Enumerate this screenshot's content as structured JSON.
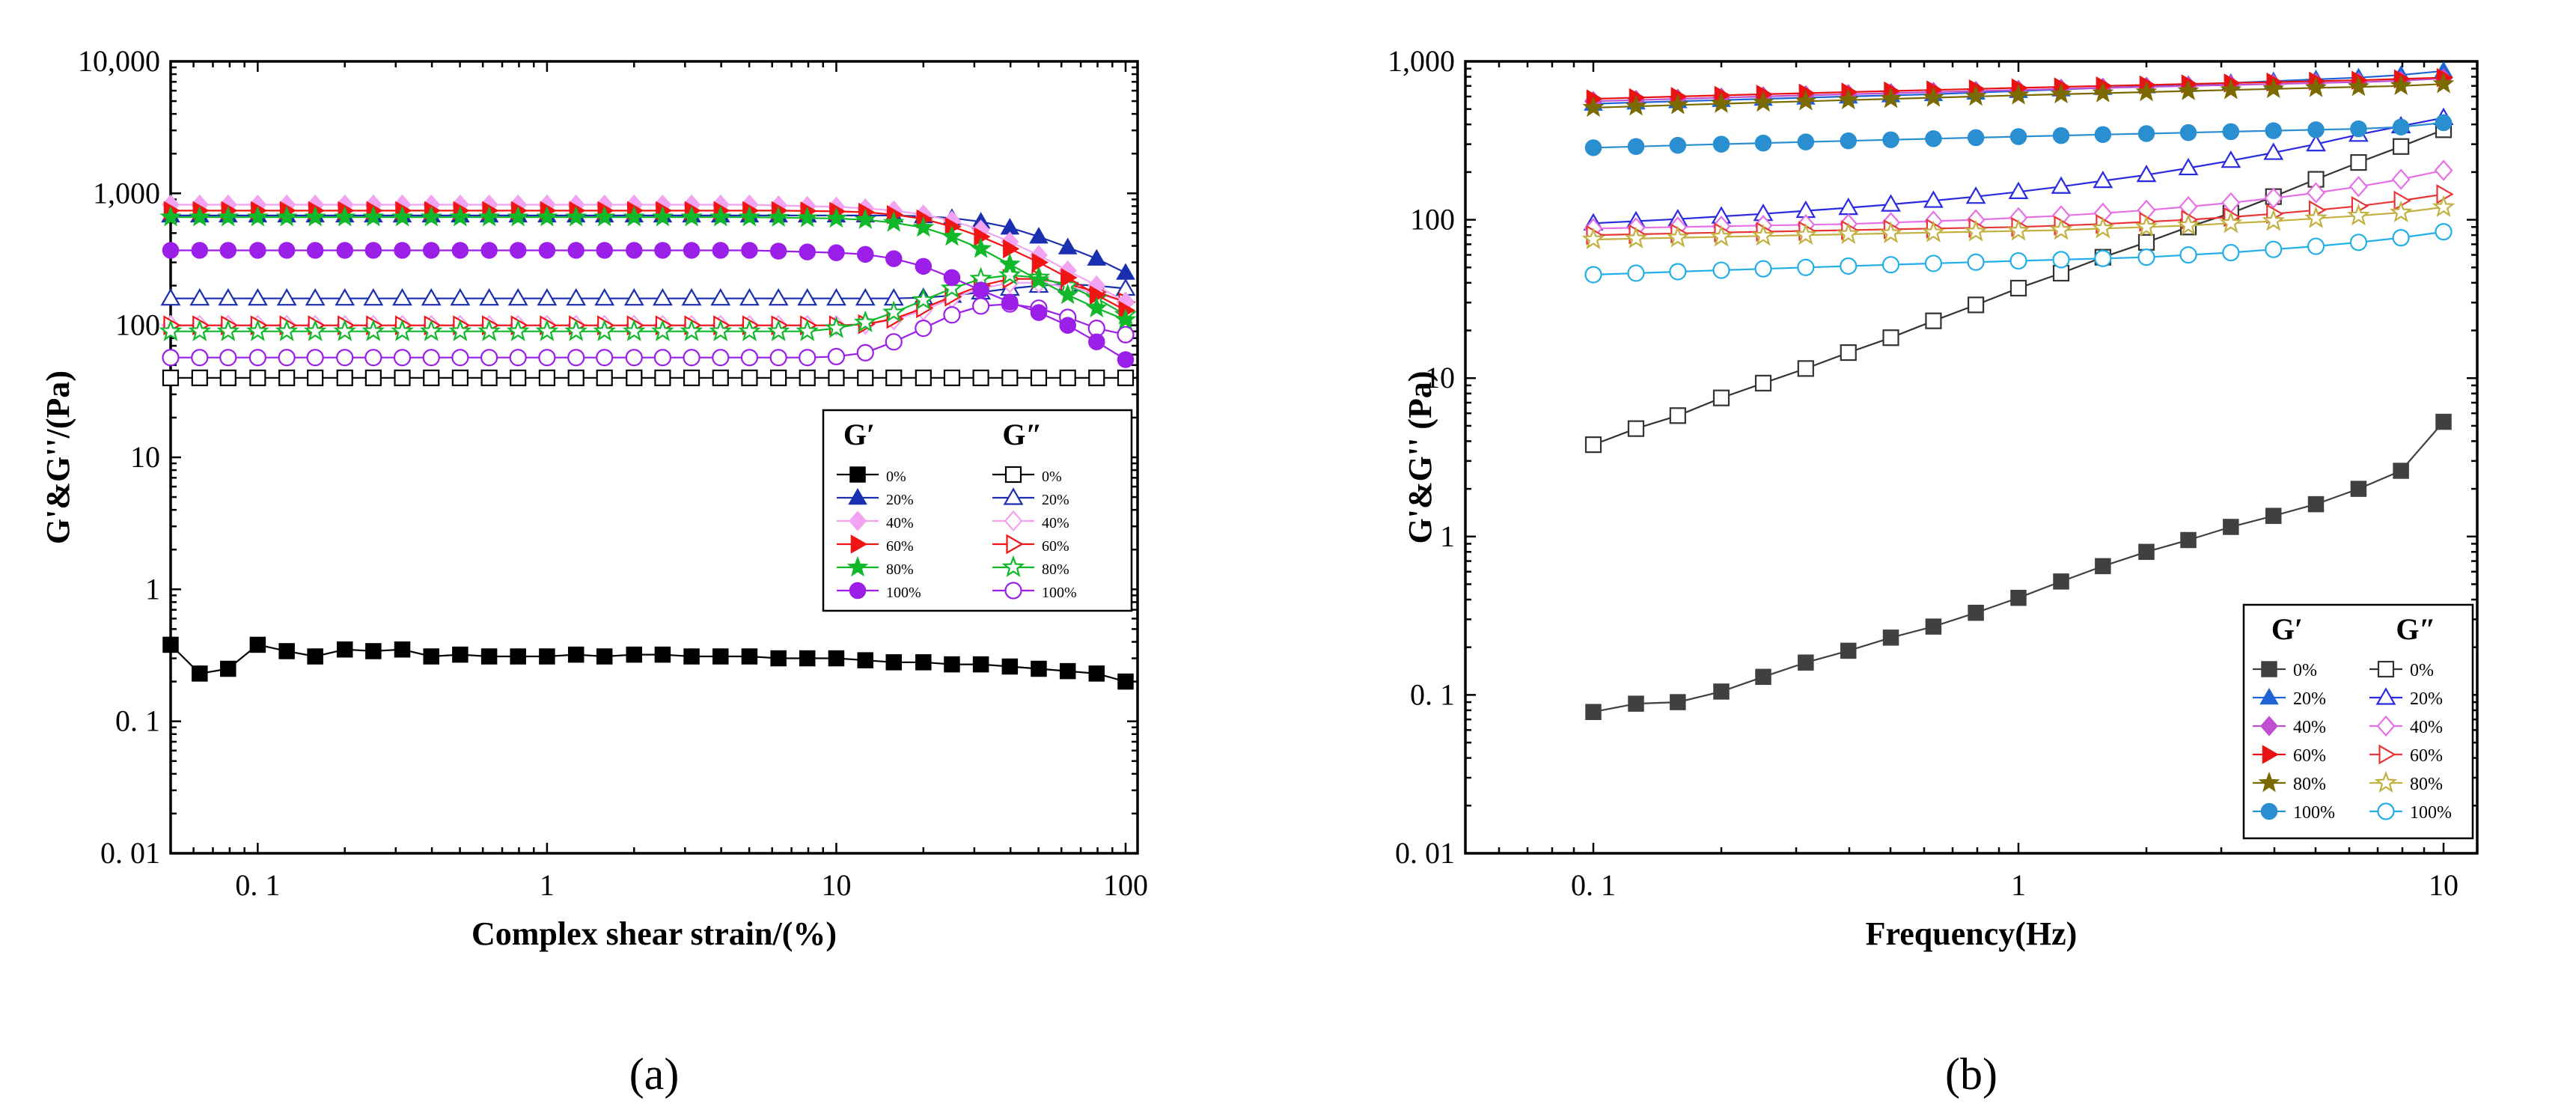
{
  "chart_data": [
    {
      "type": "scatter",
      "panel_label": "(a)",
      "xlabel": "Complex shear strain/(%)",
      "ylabel": "G'&G''/(Pa)",
      "xscale": "log",
      "yscale": "log",
      "xlim": [
        0.05,
        110
      ],
      "ylim": [
        0.01,
        10000
      ],
      "x_ticks": [
        0.1,
        1,
        10,
        100
      ],
      "x_tick_labels": [
        "0. 1",
        "1",
        "10",
        "100"
      ],
      "y_ticks": [
        0.01,
        0.1,
        1,
        10,
        100,
        1000,
        10000
      ],
      "y_tick_labels": [
        "0. 01",
        "0. 1",
        "1",
        "10",
        "100",
        "1,000",
        "10,000"
      ],
      "legend": {
        "position": "lower-right",
        "header_left": "G′",
        "header_right": "G″"
      },
      "colors": {
        "0%": "#000000",
        "20%": "#1a2fb0",
        "40%": "#f2a3f2",
        "60%": "#f01515",
        "80%": "#10b82a",
        "100%": "#9b1fe8"
      },
      "x": [
        0.05,
        0.063,
        0.079,
        0.1,
        0.126,
        0.158,
        0.2,
        0.251,
        0.316,
        0.398,
        0.501,
        0.631,
        0.794,
        1,
        1.26,
        1.58,
        2,
        2.51,
        3.16,
        3.98,
        5.01,
        6.31,
        7.94,
        10,
        12.6,
        15.8,
        20,
        25.1,
        31.6,
        39.8,
        50.1,
        63.1,
        79.4,
        100
      ],
      "series": [
        {
          "name": "0%",
          "kind": "G'",
          "marker": "square",
          "filled": true,
          "values": [
            0.38,
            0.23,
            0.25,
            0.38,
            0.34,
            0.31,
            0.35,
            0.34,
            0.35,
            0.31,
            0.32,
            0.31,
            0.31,
            0.31,
            0.32,
            0.31,
            0.32,
            0.32,
            0.31,
            0.31,
            0.31,
            0.3,
            0.3,
            0.3,
            0.29,
            0.28,
            0.28,
            0.27,
            0.27,
            0.26,
            0.25,
            0.24,
            0.23,
            0.2
          ]
        },
        {
          "name": "20%",
          "kind": "G'",
          "marker": "triangle",
          "filled": true,
          "values": [
            680,
            680,
            680,
            680,
            680,
            680,
            680,
            680,
            680,
            680,
            680,
            680,
            680,
            680,
            680,
            680,
            680,
            680,
            680,
            680,
            680,
            680,
            680,
            680,
            680,
            680,
            670,
            650,
            610,
            550,
            470,
            390,
            320,
            250
          ]
        },
        {
          "name": "40%",
          "kind": "G'",
          "marker": "diamond",
          "filled": true,
          "values": [
            820,
            820,
            820,
            820,
            820,
            820,
            820,
            820,
            820,
            820,
            820,
            820,
            820,
            820,
            820,
            820,
            820,
            820,
            820,
            820,
            820,
            810,
            800,
            790,
            770,
            740,
            690,
            620,
            530,
            430,
            340,
            260,
            200,
            150
          ]
        },
        {
          "name": "60%",
          "kind": "G'",
          "marker": "triangle-right",
          "filled": true,
          "values": [
            740,
            740,
            740,
            740,
            740,
            740,
            740,
            740,
            740,
            740,
            740,
            740,
            740,
            740,
            740,
            740,
            740,
            740,
            740,
            740,
            740,
            740,
            735,
            730,
            720,
            690,
            640,
            560,
            470,
            380,
            300,
            230,
            170,
            130
          ]
        },
        {
          "name": "80%",
          "kind": "G'",
          "marker": "star",
          "filled": true,
          "values": [
            660,
            660,
            660,
            660,
            660,
            660,
            660,
            660,
            660,
            660,
            660,
            660,
            660,
            660,
            660,
            660,
            660,
            660,
            660,
            660,
            660,
            655,
            650,
            645,
            630,
            600,
            550,
            470,
            380,
            290,
            220,
            170,
            135,
            110
          ]
        },
        {
          "name": "100%",
          "kind": "G'",
          "marker": "circle",
          "filled": true,
          "values": [
            370,
            370,
            370,
            370,
            370,
            370,
            370,
            370,
            370,
            370,
            370,
            370,
            370,
            370,
            370,
            370,
            370,
            370,
            370,
            370,
            370,
            365,
            360,
            355,
            345,
            320,
            280,
            230,
            185,
            150,
            125,
            100,
            75,
            55
          ]
        },
        {
          "name": "0%",
          "kind": "G''",
          "marker": "square",
          "filled": false,
          "values": [
            40,
            40,
            40,
            40,
            40,
            40,
            40,
            40,
            40,
            40,
            40,
            40,
            40,
            40,
            40,
            40,
            40,
            40,
            40,
            40,
            40,
            40,
            40,
            40,
            40,
            40,
            40,
            40,
            40,
            40,
            40,
            40,
            40,
            40
          ]
        },
        {
          "name": "20%",
          "kind": "G''",
          "marker": "triangle",
          "filled": false,
          "values": [
            160,
            160,
            160,
            160,
            160,
            160,
            160,
            160,
            160,
            160,
            160,
            160,
            160,
            160,
            160,
            160,
            160,
            160,
            160,
            160,
            160,
            160,
            160,
            160,
            160,
            160,
            162,
            168,
            178,
            190,
            200,
            205,
            200,
            190
          ]
        },
        {
          "name": "40%",
          "kind": "G''",
          "marker": "diamond",
          "filled": false,
          "values": [
            100,
            100,
            100,
            100,
            100,
            100,
            100,
            100,
            100,
            100,
            100,
            100,
            100,
            100,
            100,
            100,
            100,
            100,
            100,
            100,
            100,
            100,
            100,
            100,
            102,
            110,
            130,
            160,
            190,
            210,
            210,
            195,
            175,
            150
          ]
        },
        {
          "name": "60%",
          "kind": "G''",
          "marker": "triangle-right",
          "filled": false,
          "values": [
            100,
            100,
            100,
            100,
            100,
            100,
            100,
            100,
            100,
            100,
            100,
            100,
            100,
            100,
            100,
            100,
            100,
            100,
            100,
            100,
            100,
            100,
            100,
            100,
            102,
            112,
            135,
            165,
            200,
            225,
            225,
            205,
            180,
            150
          ]
        },
        {
          "name": "80%",
          "kind": "G''",
          "marker": "star",
          "filled": false,
          "values": [
            90,
            90,
            90,
            90,
            90,
            90,
            90,
            90,
            90,
            90,
            90,
            90,
            90,
            90,
            90,
            90,
            90,
            90,
            90,
            90,
            90,
            90,
            90,
            95,
            105,
            125,
            155,
            190,
            225,
            240,
            230,
            200,
            160,
            120
          ]
        },
        {
          "name": "100%",
          "kind": "G''",
          "marker": "circle",
          "filled": false,
          "values": [
            57,
            57,
            57,
            57,
            57,
            57,
            57,
            57,
            57,
            57,
            57,
            57,
            57,
            57,
            57,
            57,
            57,
            57,
            57,
            57,
            57,
            57,
            57,
            58,
            62,
            75,
            95,
            120,
            140,
            145,
            135,
            115,
            95,
            85
          ]
        }
      ]
    },
    {
      "type": "scatter",
      "panel_label": "(b)",
      "xlabel": "Frequency(Hz)",
      "ylabel": "G'&G'' (Pa)",
      "xscale": "log",
      "yscale": "log",
      "xlim": [
        0.05,
        12
      ],
      "ylim": [
        0.01,
        1000
      ],
      "x_ticks": [
        0.1,
        1,
        10
      ],
      "x_tick_labels": [
        "0. 1",
        "1",
        "10"
      ],
      "y_ticks": [
        0.01,
        0.1,
        1,
        10,
        100,
        1000
      ],
      "y_tick_labels": [
        "0. 01",
        "0. 1",
        "1",
        "10",
        "100",
        "1,000"
      ],
      "legend": {
        "position": "lower-right",
        "header_left": "G′",
        "header_right": "G″"
      },
      "colors": {
        "0%": "#404040",
        "20%": "#1e63d6",
        "40%": "#c04fd2",
        "60%": "#e81414",
        "80%": "#7a6a00",
        "100%": "#2a8fd0"
      },
      "g2_colors": {
        "0%": "#333333",
        "20%": "#2a2ae0",
        "40%": "#e76fe7",
        "60%": "#e83535",
        "80%": "#c2b040",
        "100%": "#22aee6"
      },
      "x": [
        0.1,
        0.126,
        0.158,
        0.2,
        0.251,
        0.316,
        0.398,
        0.501,
        0.631,
        0.794,
        1,
        1.26,
        1.58,
        2,
        2.51,
        3.16,
        3.98,
        5.01,
        6.31,
        7.94,
        10
      ],
      "series": [
        {
          "name": "0%",
          "kind": "G'",
          "marker": "square",
          "filled": true,
          "values": [
            0.078,
            0.088,
            0.09,
            0.105,
            0.13,
            0.16,
            0.19,
            0.23,
            0.27,
            0.33,
            0.41,
            0.52,
            0.65,
            0.8,
            0.95,
            1.15,
            1.35,
            1.6,
            2.0,
            2.6,
            5.3
          ]
        },
        {
          "name": "20%",
          "kind": "G'",
          "marker": "triangle",
          "filled": true,
          "values": [
            540,
            550,
            560,
            570,
            580,
            590,
            600,
            610,
            620,
            635,
            650,
            665,
            680,
            695,
            710,
            730,
            750,
            770,
            790,
            820,
            870
          ]
        },
        {
          "name": "40%",
          "kind": "G'",
          "marker": "diamond",
          "filled": true,
          "values": [
            560,
            570,
            580,
            590,
            600,
            610,
            620,
            630,
            640,
            650,
            660,
            670,
            680,
            690,
            700,
            710,
            720,
            730,
            740,
            755,
            780
          ]
        },
        {
          "name": "60%",
          "kind": "G'",
          "marker": "triangle-right",
          "filled": true,
          "values": [
            580,
            590,
            600,
            610,
            620,
            630,
            640,
            650,
            660,
            670,
            680,
            690,
            700,
            710,
            720,
            730,
            740,
            750,
            760,
            775,
            790
          ]
        },
        {
          "name": "80%",
          "kind": "G'",
          "marker": "star",
          "filled": true,
          "values": [
            510,
            520,
            530,
            540,
            550,
            560,
            570,
            580,
            590,
            600,
            610,
            620,
            630,
            640,
            650,
            660,
            670,
            680,
            690,
            700,
            720
          ]
        },
        {
          "name": "100%",
          "kind": "G'",
          "marker": "circle",
          "filled": true,
          "values": [
            285,
            290,
            295,
            300,
            305,
            310,
            315,
            320,
            325,
            330,
            335,
            340,
            345,
            350,
            355,
            360,
            365,
            370,
            375,
            385,
            410
          ]
        },
        {
          "name": "0%",
          "kind": "G''",
          "marker": "square",
          "filled": false,
          "values": [
            3.8,
            4.8,
            5.8,
            7.5,
            9.3,
            11.5,
            14.5,
            18,
            23,
            29,
            37,
            46,
            58,
            72,
            90,
            110,
            140,
            180,
            230,
            290,
            370
          ]
        },
        {
          "name": "20%",
          "kind": "G''",
          "marker": "triangle",
          "filled": false,
          "values": [
            95,
            98,
            101,
            105,
            109,
            114,
            119,
            125,
            132,
            140,
            150,
            162,
            176,
            192,
            212,
            236,
            265,
            300,
            345,
            390,
            440
          ]
        },
        {
          "name": "40%",
          "kind": "G''",
          "marker": "diamond",
          "filled": false,
          "values": [
            88,
            89,
            90,
            91,
            92,
            93,
            94,
            96,
            98,
            100,
            103,
            106,
            110,
            115,
            121,
            128,
            137,
            148,
            162,
            180,
            205
          ]
        },
        {
          "name": "60%",
          "kind": "G''",
          "marker": "triangle-right",
          "filled": false,
          "values": [
            80,
            81,
            82,
            83,
            84,
            85,
            86,
            87,
            88,
            89,
            90,
            92,
            94,
            97,
            100,
            104,
            109,
            115,
            122,
            132,
            145
          ]
        },
        {
          "name": "80%",
          "kind": "G''",
          "marker": "star",
          "filled": false,
          "values": [
            75,
            76,
            77,
            78,
            79,
            80,
            81,
            82,
            83,
            84,
            85,
            86,
            88,
            90,
            92,
            95,
            98,
            102,
            106,
            111,
            120
          ]
        },
        {
          "name": "100%",
          "kind": "G''",
          "marker": "circle",
          "filled": false,
          "values": [
            45,
            46,
            47,
            48,
            49,
            50,
            51,
            52,
            53,
            54,
            55,
            56,
            57,
            58,
            60,
            62,
            65,
            68,
            72,
            77,
            84
          ]
        }
      ]
    }
  ]
}
